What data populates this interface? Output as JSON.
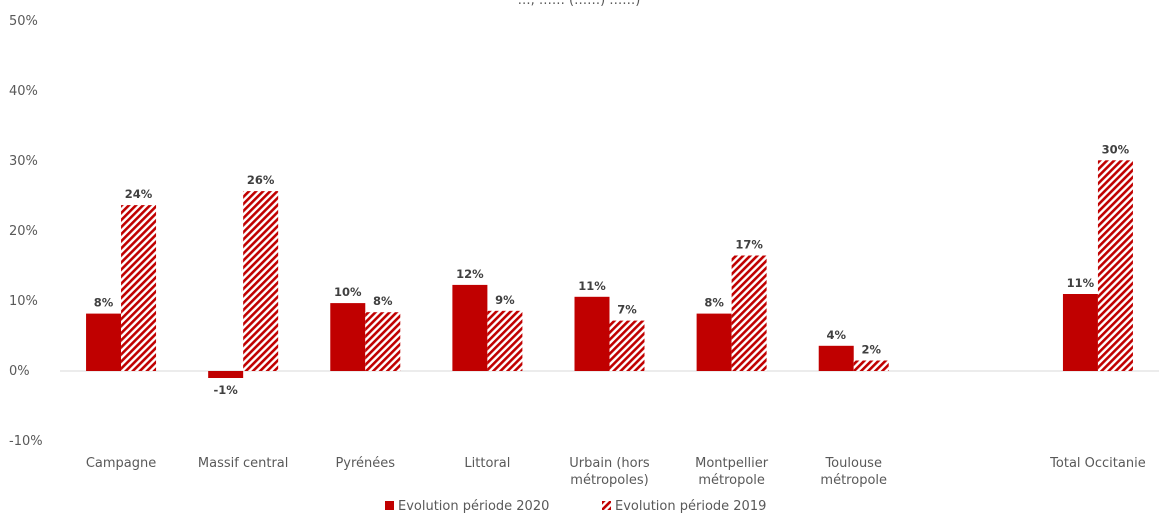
{
  "chart_data": {
    "type": "bar",
    "title": "…, …… (……) ……)",
    "ylim": [
      -10,
      50
    ],
    "yticks": [
      "50%",
      "40%",
      "30%",
      "20%",
      "10%",
      "0%",
      "-10%"
    ],
    "ytick_values": [
      50,
      40,
      30,
      20,
      10,
      0,
      -10
    ],
    "categories": [
      [
        "Campagne"
      ],
      [
        "Massif central"
      ],
      [
        "Pyrénées"
      ],
      [
        "Littoral"
      ],
      [
        "Urbain (hors",
        "métropoles)"
      ],
      [
        "Montpellier",
        "métropole"
      ],
      [
        "Toulouse",
        "métropole"
      ],
      [
        ""
      ],
      [
        "Total Occitanie"
      ]
    ],
    "series": [
      {
        "name": "Evolution période 2020",
        "color": "#c00000",
        "pattern": "solid",
        "values": [
          8.2,
          -1.0,
          9.7,
          12.3,
          10.6,
          8.2,
          3.6,
          null,
          11.0
        ],
        "labels": [
          "8%",
          "-1%",
          "10%",
          "12%",
          "11%",
          "8%",
          "4%",
          "",
          "11%"
        ]
      },
      {
        "name": "Evolution période 2019",
        "color": "#c00000",
        "pattern": "diagonal-hatch",
        "values": [
          23.7,
          25.7,
          8.4,
          8.6,
          7.2,
          16.5,
          1.5,
          null,
          30.1
        ],
        "labels": [
          "24%",
          "26%",
          "8%",
          "9%",
          "7%",
          "17%",
          "2%",
          "",
          "30%"
        ]
      }
    ],
    "grid": false,
    "legend_position": "bottom-center"
  }
}
